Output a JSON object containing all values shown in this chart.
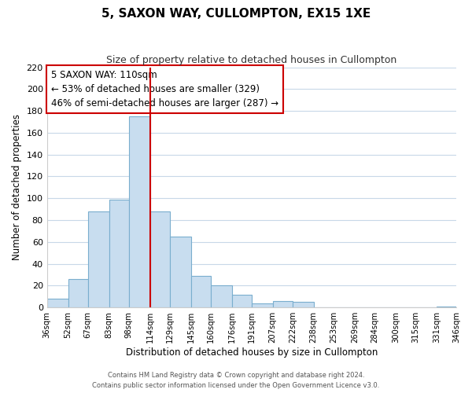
{
  "title": "5, SAXON WAY, CULLOMPTON, EX15 1XE",
  "subtitle": "Size of property relative to detached houses in Cullompton",
  "xlabel": "Distribution of detached houses by size in Cullompton",
  "ylabel": "Number of detached properties",
  "bar_color": "#c8ddef",
  "bar_edge_color": "#7aaece",
  "background_color": "#ffffff",
  "grid_color": "#c8d8e8",
  "vline_x": 114,
  "vline_color": "#cc0000",
  "categories": [
    "36sqm",
    "52sqm",
    "67sqm",
    "83sqm",
    "98sqm",
    "114sqm",
    "129sqm",
    "145sqm",
    "160sqm",
    "176sqm",
    "191sqm",
    "207sqm",
    "222sqm",
    "238sqm",
    "253sqm",
    "269sqm",
    "284sqm",
    "300sqm",
    "315sqm",
    "331sqm",
    "346sqm"
  ],
  "bin_edges": [
    36,
    52,
    67,
    83,
    98,
    114,
    129,
    145,
    160,
    176,
    191,
    207,
    222,
    238,
    253,
    269,
    284,
    300,
    315,
    331,
    346
  ],
  "values": [
    8,
    26,
    88,
    99,
    175,
    88,
    65,
    29,
    20,
    12,
    4,
    6,
    5,
    0,
    0,
    0,
    0,
    0,
    0,
    1
  ],
  "ylim": [
    0,
    220
  ],
  "yticks": [
    0,
    20,
    40,
    60,
    80,
    100,
    120,
    140,
    160,
    180,
    200,
    220
  ],
  "annotation_title": "5 SAXON WAY: 110sqm",
  "annotation_line1": "← 53% of detached houses are smaller (329)",
  "annotation_line2": "46% of semi-detached houses are larger (287) →",
  "annotation_box_color": "#ffffff",
  "annotation_box_edge": "#cc0000",
  "footer1": "Contains HM Land Registry data © Crown copyright and database right 2024.",
  "footer2": "Contains public sector information licensed under the Open Government Licence v3.0."
}
